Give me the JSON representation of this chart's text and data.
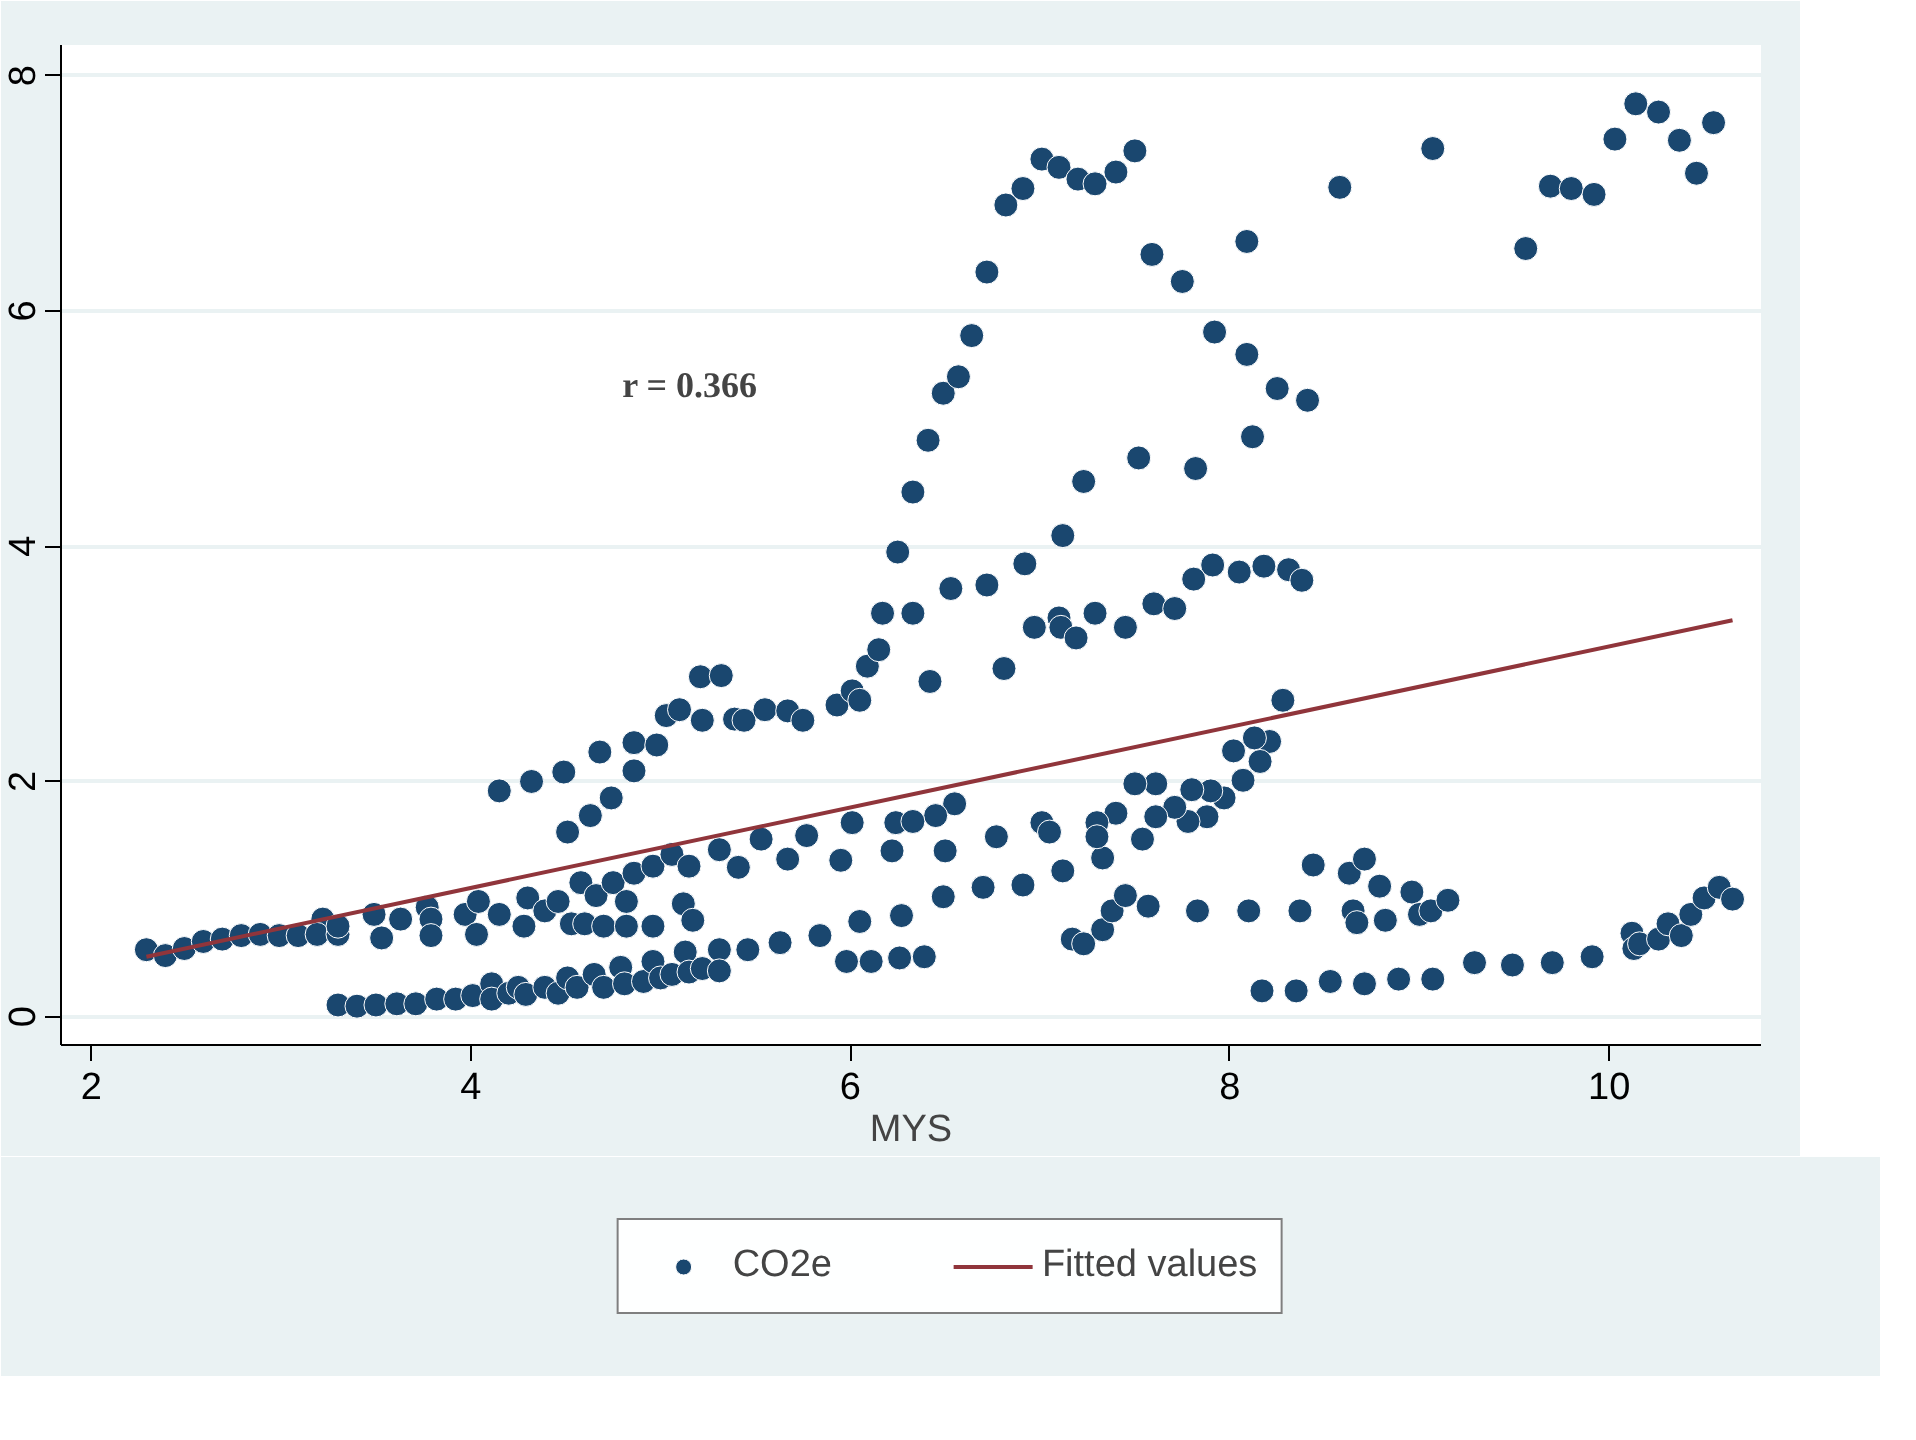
{
  "chart_data": {
    "type": "scatter",
    "xlabel": "MYS",
    "annotations": [
      "r = 0.366"
    ],
    "xlim": [
      1.84,
      10.8
    ],
    "ylim": [
      -0.24,
      8.26
    ],
    "xticks": [
      2,
      4,
      6,
      8,
      10
    ],
    "yticks": [
      0,
      2,
      4,
      6,
      8
    ],
    "grid": "y",
    "legend": "bottom",
    "series": [
      {
        "name": "CO2e",
        "color": "#1a476f",
        "marker": "circle",
        "x": [
          2.29,
          2.39,
          2.49,
          2.59,
          2.69,
          2.79,
          2.89,
          2.99,
          3.09,
          3.22,
          3.19,
          3.3,
          3.3,
          3.49,
          3.53,
          3.63,
          3.77,
          3.79,
          3.79,
          3.97,
          4.03,
          4.04,
          4.15,
          4.28,
          4.3,
          4.39,
          4.46,
          4.53,
          4.58,
          4.6,
          4.66,
          4.7,
          4.75,
          4.82,
          4.82,
          4.86,
          4.96,
          4.96,
          5.06,
          5.12,
          5.15,
          5.17,
          5.31,
          5.41,
          5.53,
          5.67,
          5.77,
          5.95,
          6.01,
          6.22,
          6.24,
          4.15,
          4.32,
          4.49,
          4.68,
          4.86,
          4.98,
          5.03,
          5.1,
          5.21,
          5.32,
          5.22,
          5.39,
          5.44,
          5.55,
          5.67,
          5.75,
          5.93,
          6.01,
          6.05,
          6.09,
          6.15,
          6.17,
          4.51,
          4.63,
          4.74,
          4.86,
          6.25,
          6.33,
          6.41,
          6.49,
          6.57,
          6.64,
          6.72,
          6.82,
          6.91,
          7.01,
          7.1,
          7.2,
          7.29,
          7.4,
          7.5,
          7.59,
          7.75,
          8.09,
          7.92,
          8.09,
          8.25,
          8.41,
          8.12,
          7.82,
          7.52,
          7.23,
          7.12,
          6.92,
          6.72,
          6.53,
          8.58,
          9.07,
          9.56,
          9.69,
          9.8,
          9.92,
          10.03,
          10.14,
          10.26,
          10.37,
          10.46,
          10.55,
          7.81,
          7.91,
          8.05,
          8.18,
          8.31,
          8.38,
          6.33,
          6.42,
          6.81,
          6.97,
          7.1,
          7.11,
          7.19,
          7.29,
          7.45,
          7.6,
          7.71,
          8.28,
          8.21,
          8.13,
          8.16,
          8.02,
          8.07,
          7.97,
          7.88,
          7.9,
          7.8,
          7.78,
          7.71,
          7.61,
          7.5,
          7.61,
          7.54,
          7.4,
          7.3,
          7.33,
          7.3,
          7.01,
          7.05,
          6.77,
          6.55,
          6.45,
          6.33,
          6.5,
          6.49,
          6.7,
          6.91,
          7.12,
          6.27,
          6.26,
          6.39,
          5.98,
          6.11,
          6.05,
          5.84,
          5.63,
          5.46,
          5.31,
          7.17,
          7.23,
          7.33,
          7.38,
          7.45,
          7.57,
          7.83,
          8.1,
          8.37,
          8.44,
          8.63,
          8.71,
          8.79,
          8.65,
          8.67,
          8.82,
          8.96,
          9.0,
          9.06,
          9.15,
          8.17,
          8.35,
          8.53,
          8.71,
          8.89,
          9.07,
          9.29,
          9.49,
          9.7,
          9.91,
          10.12,
          10.13,
          10.16,
          10.26,
          10.31,
          10.38,
          10.43,
          10.5,
          10.58,
          10.65,
          3.3,
          3.4,
          3.5,
          3.61,
          3.71,
          3.82,
          3.92,
          4.01,
          4.11,
          4.11,
          4.2,
          4.25,
          4.29,
          4.39,
          4.46,
          4.51,
          4.56,
          4.65,
          4.7,
          4.79,
          4.81,
          4.91,
          4.96,
          5.0,
          5.06,
          5.13,
          5.15,
          5.22,
          5.31
        ],
        "values": [
          0.57,
          0.52,
          0.58,
          0.64,
          0.66,
          0.69,
          0.7,
          0.69,
          0.69,
          0.83,
          0.7,
          0.7,
          0.77,
          0.87,
          0.67,
          0.83,
          0.93,
          0.83,
          0.69,
          0.87,
          0.7,
          0.98,
          0.87,
          0.77,
          1.01,
          0.9,
          0.98,
          0.79,
          1.14,
          0.79,
          1.03,
          0.77,
          1.14,
          0.77,
          0.98,
          1.22,
          1.28,
          0.77,
          1.38,
          0.96,
          1.28,
          0.82,
          1.42,
          1.27,
          1.51,
          1.34,
          1.54,
          1.33,
          1.65,
          1.41,
          1.65,
          1.92,
          2.0,
          2.08,
          2.25,
          2.33,
          2.31,
          2.56,
          2.61,
          2.89,
          2.9,
          2.52,
          2.53,
          2.52,
          2.61,
          2.6,
          2.52,
          2.65,
          2.77,
          2.69,
          2.98,
          3.12,
          3.43,
          1.57,
          1.71,
          1.86,
          2.09,
          3.95,
          4.46,
          4.9,
          5.3,
          5.44,
          5.79,
          6.33,
          6.9,
          7.04,
          7.29,
          7.22,
          7.12,
          7.08,
          7.18,
          7.36,
          6.48,
          6.25,
          6.59,
          5.82,
          5.63,
          5.34,
          5.24,
          4.93,
          4.66,
          4.75,
          4.55,
          4.09,
          3.85,
          3.67,
          3.64,
          7.05,
          7.38,
          6.53,
          7.06,
          7.04,
          6.99,
          7.46,
          7.76,
          7.69,
          7.45,
          7.17,
          7.6,
          3.72,
          3.84,
          3.78,
          3.83,
          3.8,
          3.71,
          3.43,
          2.85,
          2.96,
          3.31,
          3.39,
          3.31,
          3.22,
          3.43,
          3.31,
          3.51,
          3.47,
          2.69,
          2.34,
          2.37,
          2.17,
          2.26,
          2.01,
          1.86,
          1.7,
          1.92,
          1.93,
          1.66,
          1.78,
          1.98,
          1.98,
          1.7,
          1.51,
          1.73,
          1.65,
          1.35,
          1.53,
          1.65,
          1.57,
          1.53,
          1.81,
          1.71,
          1.66,
          1.41,
          1.02,
          1.1,
          1.12,
          1.24,
          0.86,
          0.5,
          0.51,
          0.47,
          0.47,
          0.81,
          0.69,
          0.63,
          0.57,
          0.57,
          0.66,
          0.62,
          0.74,
          0.9,
          1.03,
          0.94,
          0.9,
          0.9,
          0.9,
          1.29,
          1.22,
          1.34,
          1.11,
          0.9,
          0.8,
          0.82,
          1.06,
          0.87,
          0.9,
          0.99,
          0.22,
          0.22,
          0.3,
          0.28,
          0.32,
          0.32,
          0.46,
          0.44,
          0.46,
          0.51,
          0.71,
          0.58,
          0.62,
          0.66,
          0.79,
          0.69,
          0.87,
          1.01,
          1.1,
          1.0,
          0.1,
          0.09,
          0.1,
          0.11,
          0.11,
          0.15,
          0.15,
          0.18,
          0.28,
          0.15,
          0.2,
          0.25,
          0.19,
          0.25,
          0.2,
          0.33,
          0.25,
          0.36,
          0.25,
          0.42,
          0.28,
          0.3,
          0.47,
          0.33,
          0.36,
          0.55,
          0.38,
          0.41,
          0.39
        ]
      },
      {
        "name": "Fitted values",
        "color": "#90353b",
        "type": "line",
        "x": [
          2.29,
          10.65
        ],
        "values": [
          0.51,
          3.37
        ]
      }
    ]
  }
}
